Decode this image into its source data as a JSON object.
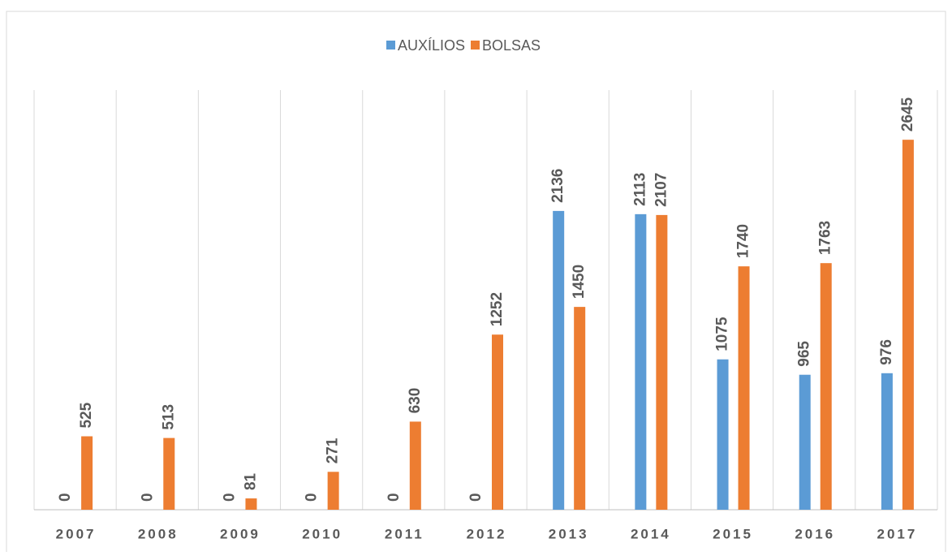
{
  "chart_data": {
    "type": "bar",
    "categories": [
      "2007",
      "2008",
      "2009",
      "2010",
      "2011",
      "2012",
      "2013",
      "2014",
      "2015",
      "2016",
      "2017"
    ],
    "series": [
      {
        "name": "AUXÍLIOS",
        "color": "#5b9bd5",
        "values": [
          0,
          0,
          0,
          0,
          0,
          0,
          2136,
          2113,
          1075,
          965,
          976
        ]
      },
      {
        "name": "BOLSAS",
        "color": "#ed7d31",
        "values": [
          525,
          513,
          81,
          271,
          630,
          1252,
          1450,
          2107,
          1740,
          1763,
          2645
        ]
      }
    ],
    "ylim": [
      0,
      3000
    ],
    "legend": "top"
  }
}
